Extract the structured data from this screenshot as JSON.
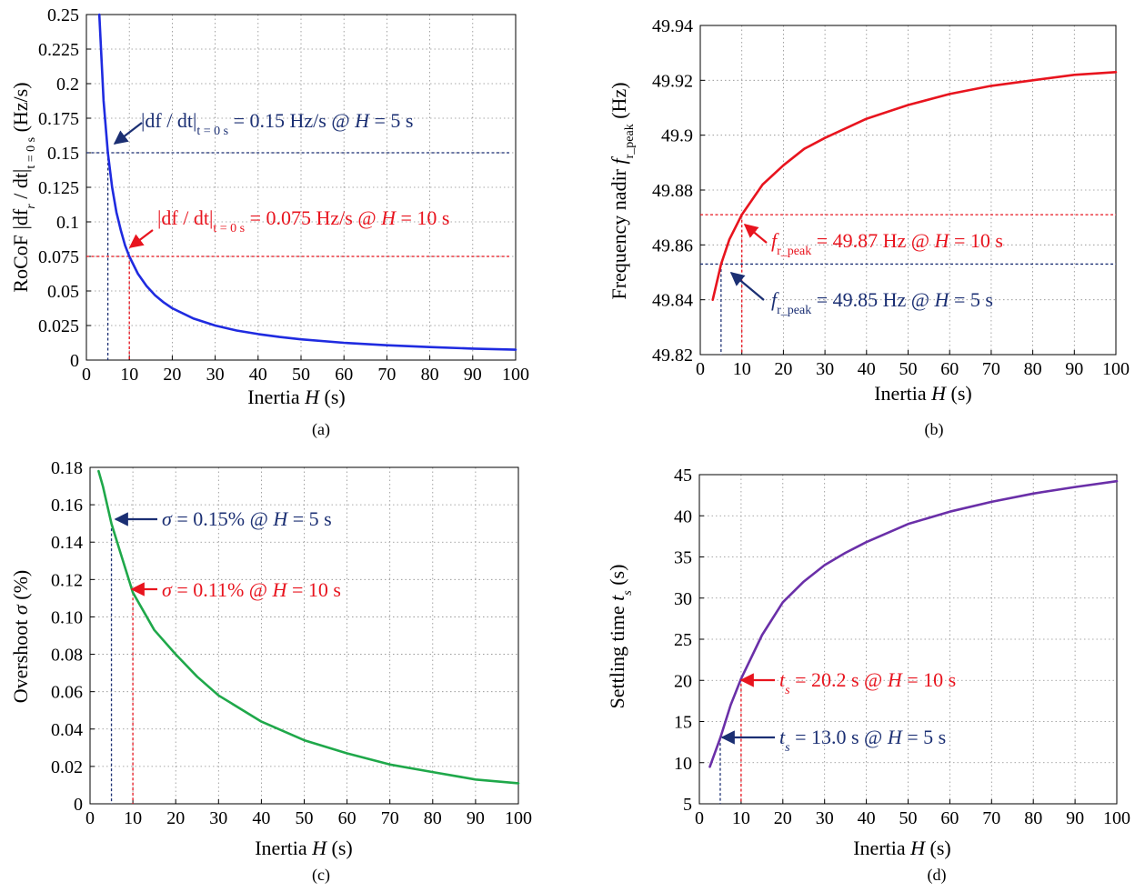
{
  "chart_data": [
    {
      "type": "line",
      "caption": "(a)",
      "xlabel": "Inertia H (s)",
      "ylabel": "RoCoF |df_r / dt|_{t = 0 s} (Hz/s)",
      "xlim": [
        0,
        100
      ],
      "ylim": [
        0,
        0.25
      ],
      "xticks": [
        0,
        10,
        20,
        30,
        40,
        50,
        60,
        70,
        80,
        90,
        100
      ],
      "yticks": [
        0,
        0.025,
        0.05,
        0.075,
        0.1,
        0.125,
        0.15,
        0.175,
        0.2,
        0.225,
        0.25
      ],
      "ytick_labels": [
        "0",
        "0.025",
        "0.05",
        "0.075",
        "0.1",
        "0.125",
        "0.15",
        "0.175",
        "0.2",
        "0.225",
        "0.25"
      ],
      "grid": true,
      "series": [
        {
          "color": "#1f2be0",
          "x": [
            3,
            4,
            5,
            6,
            7,
            8,
            9,
            10,
            12,
            14,
            16,
            18,
            20,
            25,
            30,
            35,
            40,
            45,
            50,
            60,
            70,
            80,
            90,
            100
          ],
          "y": [
            0.25,
            0.1875,
            0.15,
            0.125,
            0.107,
            0.094,
            0.083,
            0.075,
            0.0625,
            0.0536,
            0.0469,
            0.0417,
            0.0375,
            0.03,
            0.025,
            0.0214,
            0.0188,
            0.0167,
            0.015,
            0.0125,
            0.0107,
            0.0094,
            0.0083,
            0.0075
          ]
        }
      ],
      "markers": [
        {
          "h": 5,
          "v": 0.15,
          "color": "#1b2f73",
          "label": "|df / dt|_{t = 0 s} = 0.15 Hz/s @ H = 5 s"
        },
        {
          "h": 10,
          "v": 0.075,
          "color": "#e8141e",
          "label": "|df / dt|_{t = 0 s} = 0.075 Hz/s @ H = 10 s"
        }
      ]
    },
    {
      "type": "line",
      "caption": "(b)",
      "xlabel": "Inertia H (s)",
      "ylabel": "Frequency nadir f_{r_peak} (Hz)",
      "xlim": [
        0,
        100
      ],
      "ylim": [
        49.82,
        49.94
      ],
      "xticks": [
        0,
        10,
        20,
        30,
        40,
        50,
        60,
        70,
        80,
        90,
        100
      ],
      "yticks": [
        49.82,
        49.84,
        49.86,
        49.88,
        49.9,
        49.92,
        49.94
      ],
      "ytick_labels": [
        "49.82",
        "49.84",
        "49.86",
        "49.88",
        "49.9",
        "49.92",
        "49.94"
      ],
      "grid": true,
      "series": [
        {
          "color": "#e8141e",
          "x": [
            3,
            5,
            7,
            10,
            15,
            20,
            25,
            30,
            40,
            50,
            60,
            70,
            80,
            90,
            100
          ],
          "y": [
            49.84,
            49.853,
            49.862,
            49.871,
            49.882,
            49.889,
            49.895,
            49.899,
            49.906,
            49.911,
            49.915,
            49.918,
            49.92,
            49.922,
            49.923
          ]
        }
      ],
      "markers": [
        {
          "h": 10,
          "v": 49.871,
          "color": "#e8141e",
          "label": "f_{r_peak} = 49.87 Hz @ H = 10 s"
        },
        {
          "h": 5,
          "v": 49.853,
          "color": "#1b2f73",
          "label": "f_{r_peak} = 49.85 Hz @ H = 5 s"
        }
      ]
    },
    {
      "type": "line",
      "caption": "(c)",
      "xlabel": "Inertia H (s)",
      "ylabel": "Overshoot σ (%)",
      "xlim": [
        0,
        100
      ],
      "ylim": [
        0,
        0.18
      ],
      "xticks": [
        0,
        10,
        20,
        30,
        40,
        50,
        60,
        70,
        80,
        90,
        100
      ],
      "yticks": [
        0,
        0.02,
        0.04,
        0.06,
        0.08,
        0.1,
        0.12,
        0.14,
        0.16,
        0.18
      ],
      "ytick_labels": [
        "0",
        "0.02",
        "0.04",
        "0.06",
        "0.08",
        "0.10",
        "0.12",
        "0.14",
        "0.16",
        "0.18"
      ],
      "grid": true,
      "series": [
        {
          "color": "#1fa84a",
          "x": [
            2,
            3,
            5,
            7,
            10,
            15,
            20,
            25,
            30,
            40,
            50,
            60,
            70,
            80,
            90,
            100
          ],
          "y": [
            0.178,
            0.17,
            0.15,
            0.135,
            0.113,
            0.093,
            0.08,
            0.068,
            0.058,
            0.044,
            0.034,
            0.027,
            0.021,
            0.017,
            0.013,
            0.011
          ]
        }
      ],
      "markers": [
        {
          "h": 5,
          "v": 0.15,
          "color": "#1b2f73",
          "label": "σ = 0.15% @ H = 5 s"
        },
        {
          "h": 10,
          "v": 0.113,
          "color": "#e8141e",
          "label": "σ = 0.11% @ H = 10 s"
        }
      ]
    },
    {
      "type": "line",
      "caption": "(d)",
      "xlabel": "Inertia H (s)",
      "ylabel": "Settling time t_s (s)",
      "xlim": [
        0,
        100
      ],
      "ylim": [
        5,
        45
      ],
      "xticks": [
        0,
        10,
        20,
        30,
        40,
        50,
        60,
        70,
        80,
        90,
        100
      ],
      "yticks": [
        5,
        10,
        15,
        20,
        25,
        30,
        35,
        40,
        45
      ],
      "ytick_labels": [
        "5",
        "10",
        "15",
        "20",
        "25",
        "30",
        "35",
        "40",
        "45"
      ],
      "grid": true,
      "series": [
        {
          "color": "#6a2fa8",
          "x": [
            2.5,
            5,
            7.5,
            10,
            15,
            20,
            25,
            30,
            35,
            40,
            50,
            60,
            70,
            80,
            90,
            100
          ],
          "y": [
            9.5,
            13.0,
            17.0,
            20.2,
            25.5,
            29.5,
            32.0,
            34.0,
            35.5,
            36.8,
            39.0,
            40.5,
            41.7,
            42.7,
            43.5,
            44.2
          ]
        }
      ],
      "markers": [
        {
          "h": 10,
          "v": 20.2,
          "color": "#e8141e",
          "label": "t_s = 20.2 s @ H = 10 s"
        },
        {
          "h": 5,
          "v": 13.0,
          "color": "#1b2f73",
          "label": "t_s = 13.0 s @ H = 5 s"
        }
      ]
    }
  ]
}
